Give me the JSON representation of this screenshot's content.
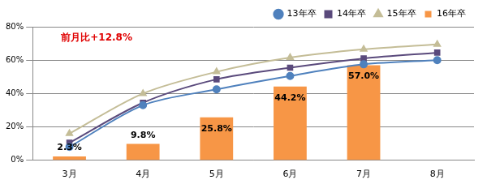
{
  "chart_data": {
    "type": "bar",
    "annotation": "前月比+12.8%",
    "categories": [
      "3月",
      "4月",
      "5月",
      "6月",
      "7月",
      "8月"
    ],
    "series": [
      {
        "name": "16年卒",
        "type": "bar",
        "color": "#f79646",
        "values": [
          2.3,
          9.8,
          25.8,
          44.2,
          57.0,
          null
        ],
        "value_labels": [
          "2.3%",
          "9.8%",
          "25.8%",
          "44.2%",
          "57.0%",
          null
        ],
        "data_labels": true
      },
      {
        "name": "13年卒",
        "type": "line",
        "color": "#4f81bd",
        "marker": "circle",
        "values": [
          8,
          33,
          42.5,
          50.5,
          57.5,
          60
        ]
      },
      {
        "name": "14年卒",
        "type": "line",
        "color": "#5a4a7c",
        "marker": "square",
        "values": [
          10.5,
          34.5,
          48.5,
          55.5,
          61,
          64.5
        ]
      },
      {
        "name": "15年卒",
        "type": "line",
        "color": "#c4bd97",
        "marker": "triangle",
        "values": [
          16,
          40,
          53,
          61.5,
          66.5,
          69.5
        ]
      }
    ],
    "ylim": [
      0,
      80
    ],
    "yticks": [
      {
        "value": 0,
        "label": "0%"
      },
      {
        "value": 20,
        "label": "20%"
      },
      {
        "value": 40,
        "label": "40%"
      },
      {
        "value": 60,
        "label": "60%"
      },
      {
        "value": 80,
        "label": "80%"
      }
    ],
    "grid": true,
    "legend": "top-right"
  }
}
